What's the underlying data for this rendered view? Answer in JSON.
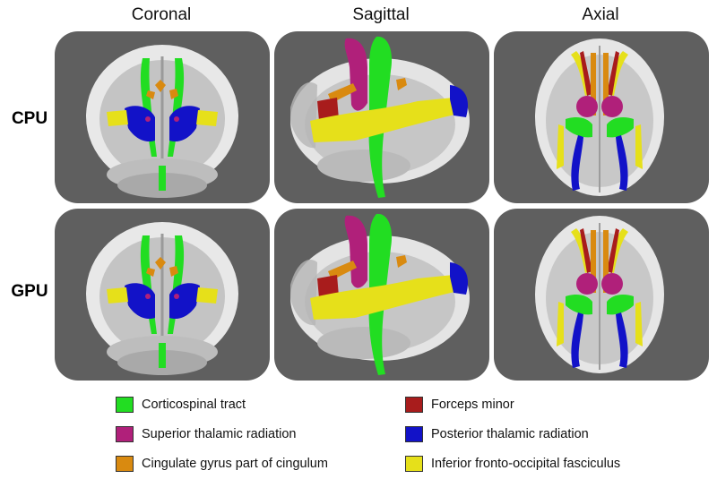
{
  "columns": [
    "Coronal",
    "Sagittal",
    "Axial"
  ],
  "rows": [
    "CPU",
    "GPU"
  ],
  "legend": [
    {
      "label": "Corticospinal tract",
      "color": "#22dd22"
    },
    {
      "label": "Superior thalamic radiation",
      "color": "#b0207a"
    },
    {
      "label": "Cingulate gyrus part of cingulum",
      "color": "#d98a10"
    },
    {
      "label": "Forceps minor",
      "color": "#a81c1c"
    },
    {
      "label": "Posterior thalamic radiation",
      "color": "#1212c8"
    },
    {
      "label": "Inferior fronto-occipital fasciculus",
      "color": "#e6e01a"
    }
  ],
  "colors": {
    "panel_background": "#5f5f5f",
    "brain": "#d9d9d9"
  }
}
